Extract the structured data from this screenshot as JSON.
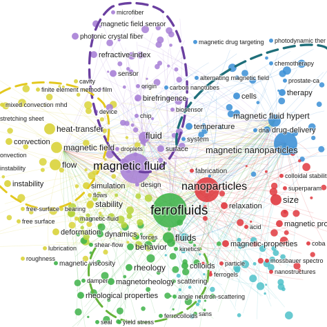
{
  "clusters": {
    "purple": "#a77fd6",
    "yellow": "#d9d33a",
    "blue": "#3b8fd6",
    "red": "#e0393f",
    "green": "#3fb34a",
    "cyan": "#4fc1c9",
    "lime": "#b6d43a"
  },
  "highlight_colors": {
    "purple_ring": "#6a3fa0",
    "yellow_ring": "#e3c81f",
    "teal_ring": "#1f6f7a",
    "green_ring": "#66b33a"
  },
  "terms": [
    {
      "id": "t1",
      "text": "microfiber",
      "cluster": "purple",
      "weight": 1
    },
    {
      "id": "t2",
      "text": "magnetic field sensor",
      "cluster": "purple",
      "weight": 2
    },
    {
      "id": "t3",
      "text": "photonic crystal fiber",
      "cluster": "purple",
      "weight": 2
    },
    {
      "id": "t4",
      "text": "refractive-index",
      "cluster": "purple",
      "weight": 2
    },
    {
      "id": "t5",
      "text": "sensor",
      "cluster": "purple",
      "weight": 2
    },
    {
      "id": "t6",
      "text": "origin",
      "cluster": "purple",
      "weight": 1
    },
    {
      "id": "t7",
      "text": "birefringence",
      "cluster": "purple",
      "weight": 2
    },
    {
      "id": "t8",
      "text": "fluid",
      "cluster": "purple",
      "weight": 3
    },
    {
      "id": "t9",
      "text": "surface",
      "cluster": "purple",
      "weight": 2
    },
    {
      "id": "t10",
      "text": "magnetic fluid",
      "cluster": "purple",
      "weight": 5
    },
    {
      "id": "t11",
      "text": "design",
      "cluster": "purple",
      "weight": 1
    },
    {
      "id": "t12",
      "text": "device",
      "cluster": "purple",
      "weight": 1
    },
    {
      "id": "t13",
      "text": "chip",
      "cluster": "purple",
      "weight": 1
    },
    {
      "id": "t14",
      "text": "droplets",
      "cluster": "purple",
      "weight": 1
    },
    {
      "id": "t15",
      "text": "biosensor",
      "cluster": "purple",
      "weight": 1
    },
    {
      "id": "t16",
      "text": "cavity",
      "cluster": "yellow",
      "weight": 1
    },
    {
      "id": "t17",
      "text": "finite element method film",
      "cluster": "yellow",
      "weight": 1
    },
    {
      "id": "t18",
      "text": "mixed convection mhd",
      "cluster": "yellow",
      "weight": 1
    },
    {
      "id": "t19",
      "text": "stretching sheet",
      "cluster": "yellow",
      "weight": 1
    },
    {
      "id": "t20",
      "text": "heat-transfer",
      "cluster": "yellow",
      "weight": 3
    },
    {
      "id": "t21",
      "text": "convection",
      "cluster": "yellow",
      "weight": 2
    },
    {
      "id": "t22",
      "text": "magnetic field",
      "cluster": "yellow",
      "weight": 3
    },
    {
      "id": "t23",
      "text": "onvection",
      "cluster": "yellow",
      "weight": 1
    },
    {
      "id": "t24",
      "text": "flow",
      "cluster": "yellow",
      "weight": 3
    },
    {
      "id": "t25",
      "text": "instability",
      "cluster": "yellow",
      "weight": 1
    },
    {
      "id": "t26",
      "text": "instability",
      "cluster": "yellow",
      "weight": 2
    },
    {
      "id": "t27",
      "text": "simulation",
      "cluster": "yellow",
      "weight": 2
    },
    {
      "id": "t28",
      "text": "flows",
      "cluster": "yellow",
      "weight": 1
    },
    {
      "id": "t29",
      "text": "stability",
      "cluster": "yellow",
      "weight": 2
    },
    {
      "id": "t30",
      "text": "free-surface",
      "cluster": "yellow",
      "weight": 1
    },
    {
      "id": "t31",
      "text": "bearing",
      "cluster": "yellow",
      "weight": 1
    },
    {
      "id": "t32",
      "text": "free surface",
      "cluster": "yellow",
      "weight": 1
    },
    {
      "id": "t33",
      "text": "magnetic-fluid",
      "cluster": "yellow",
      "weight": 1
    },
    {
      "id": "t34",
      "text": "deformation",
      "cluster": "yellow",
      "weight": 2
    },
    {
      "id": "t35",
      "text": "lubrication",
      "cluster": "yellow",
      "weight": 1
    },
    {
      "id": "t36",
      "text": "roughness",
      "cluster": "yellow",
      "weight": 1
    },
    {
      "id": "t37",
      "text": "magnetic drug targeting",
      "cluster": "blue",
      "weight": 1
    },
    {
      "id": "t38",
      "text": "photodynamic ther",
      "cluster": "blue",
      "weight": 1
    },
    {
      "id": "t39",
      "text": "chemotherapy",
      "cluster": "blue",
      "weight": 1
    },
    {
      "id": "t40",
      "text": "alternating magnetic field",
      "cluster": "blue",
      "weight": 1
    },
    {
      "id": "t41",
      "text": "prostate-ca",
      "cluster": "blue",
      "weight": 1
    },
    {
      "id": "t42",
      "text": "carbon nanotubes",
      "cluster": "blue",
      "weight": 1
    },
    {
      "id": "t43",
      "text": "cells",
      "cluster": "blue",
      "weight": 2
    },
    {
      "id": "t44",
      "text": "therapy",
      "cluster": "blue",
      "weight": 2
    },
    {
      "id": "t45",
      "text": "magnetic fluid hypert",
      "cluster": "blue",
      "weight": 3
    },
    {
      "id": "t46",
      "text": "temperature",
      "cluster": "blue",
      "weight": 2
    },
    {
      "id": "t47",
      "text": "drug-delivery",
      "cluster": "blue",
      "weight": 2
    },
    {
      "id": "t48",
      "text": "dna",
      "cluster": "blue",
      "weight": 1
    },
    {
      "id": "t49",
      "text": "system",
      "cluster": "blue",
      "weight": 1
    },
    {
      "id": "t50",
      "text": "magnetic nanoparticles",
      "cluster": "blue",
      "weight": 4
    },
    {
      "id": "t51",
      "text": "nanoparticles",
      "cluster": "red",
      "weight": 5
    },
    {
      "id": "t52",
      "text": "fabrication",
      "cluster": "red",
      "weight": 1
    },
    {
      "id": "t53",
      "text": "colloidal stabilit",
      "cluster": "red",
      "weight": 1
    },
    {
      "id": "t54",
      "text": "superparam",
      "cluster": "red",
      "weight": 1
    },
    {
      "id": "t55",
      "text": "size",
      "cluster": "red",
      "weight": 3
    },
    {
      "id": "t56",
      "text": "relaxation",
      "cluster": "red",
      "weight": 2
    },
    {
      "id": "t57",
      "text": "acid",
      "cluster": "red",
      "weight": 1
    },
    {
      "id": "t58",
      "text": "magnetic propertie",
      "cluster": "red",
      "weight": 2
    },
    {
      "id": "t59",
      "text": "magnetic-properties",
      "cluster": "red",
      "weight": 2
    },
    {
      "id": "t60",
      "text": "mossbauer spectro",
      "cluster": "red",
      "weight": 1
    },
    {
      "id": "t61",
      "text": "nanostructures",
      "cluster": "red",
      "weight": 1
    },
    {
      "id": "t62",
      "text": "particle",
      "cluster": "red",
      "weight": 1
    },
    {
      "id": "t63",
      "text": "ferrogels",
      "cluster": "red",
      "weight": 1
    },
    {
      "id": "t64",
      "text": "ferrofluids",
      "cluster": "green",
      "weight": 5
    },
    {
      "id": "t65",
      "text": "dynamics",
      "cluster": "green",
      "weight": 2
    },
    {
      "id": "t66",
      "text": "forces",
      "cluster": "green",
      "weight": 1
    },
    {
      "id": "t67",
      "text": "shear-flow",
      "cluster": "green",
      "weight": 1
    },
    {
      "id": "t68",
      "text": "fluids",
      "cluster": "green",
      "weight": 3
    },
    {
      "id": "t69",
      "text": "behavior",
      "cluster": "green",
      "weight": 2
    },
    {
      "id": "t70",
      "text": "kinetics",
      "cluster": "green",
      "weight": 1
    },
    {
      "id": "t71",
      "text": "magnetic viscosity",
      "cluster": "green",
      "weight": 1
    },
    {
      "id": "t72",
      "text": "rheology",
      "cluster": "green",
      "weight": 2
    },
    {
      "id": "t73",
      "text": "colloids",
      "cluster": "green",
      "weight": 2
    },
    {
      "id": "t74",
      "text": "damper",
      "cluster": "green",
      "weight": 1
    },
    {
      "id": "t75",
      "text": "magnetorheology",
      "cluster": "green",
      "weight": 2
    },
    {
      "id": "t76",
      "text": "scattering",
      "cluster": "green",
      "weight": 1
    },
    {
      "id": "t77",
      "text": "rheological properties",
      "cluster": "green",
      "weight": 2
    },
    {
      "id": "t78",
      "text": "angle neutron-scattering",
      "cluster": "green",
      "weight": 1
    },
    {
      "id": "t79",
      "text": "ferrocolloids",
      "cluster": "green",
      "weight": 1
    },
    {
      "id": "t80",
      "text": "seal",
      "cluster": "green",
      "weight": 1
    },
    {
      "id": "t81",
      "text": "yield stress",
      "cluster": "green",
      "weight": 1
    },
    {
      "id": "t82",
      "text": "sans",
      "cluster": "green",
      "weight": 1
    },
    {
      "id": "t83",
      "text": "coba",
      "cluster": "red",
      "weight": 1
    }
  ]
}
